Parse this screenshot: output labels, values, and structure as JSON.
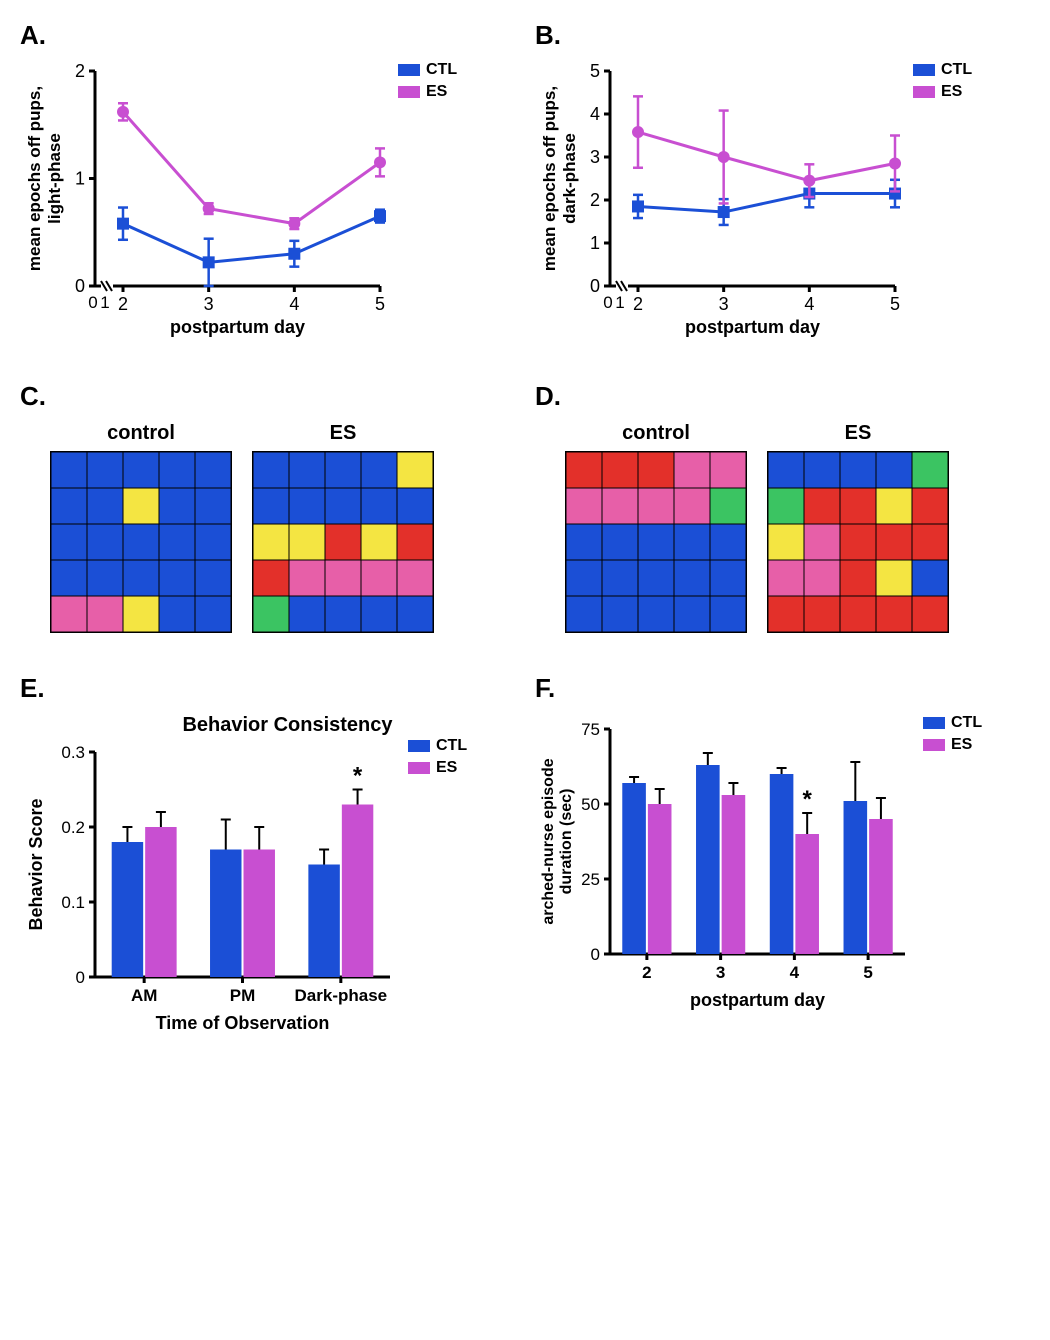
{
  "colors": {
    "ctl": "#1b4fd6",
    "es": "#c84fd1",
    "axis": "#000000",
    "text": "#000000",
    "hm_blue": "#1b4fd6",
    "hm_red": "#e3302a",
    "hm_pink": "#e75fa8",
    "hm_yellow": "#f4e542",
    "hm_green": "#3bc462",
    "bg": "#ffffff"
  },
  "panelA": {
    "label": "A.",
    "ylabel_line1": "mean epochs off pups,",
    "ylabel_line2": "light-phase",
    "xlabel": "postpartum day",
    "x_categories": [
      "2",
      "3",
      "4",
      "5"
    ],
    "yticks": [
      0,
      1,
      2
    ],
    "ylim": [
      0,
      2
    ],
    "series": [
      {
        "name": "CTL",
        "color": "#1b4fd6",
        "marker": "square",
        "values": [
          0.58,
          0.22,
          0.3,
          0.65
        ],
        "err": [
          0.15,
          0.22,
          0.12,
          0.06
        ]
      },
      {
        "name": "ES",
        "color": "#c84fd1",
        "marker": "circle",
        "values": [
          1.62,
          0.72,
          0.58,
          1.15
        ],
        "err": [
          0.08,
          0.05,
          0.05,
          0.13
        ]
      }
    ],
    "legend": [
      "CTL",
      "ES"
    ]
  },
  "panelB": {
    "label": "B.",
    "ylabel_line1": "mean epochs off pups,",
    "ylabel_line2": "dark-phase",
    "xlabel": "postpartum day",
    "x_categories": [
      "2",
      "3",
      "4",
      "5"
    ],
    "yticks": [
      0,
      1,
      2,
      3,
      4,
      5
    ],
    "ylim": [
      0,
      5
    ],
    "series": [
      {
        "name": "CTL",
        "color": "#1b4fd6",
        "marker": "square",
        "values": [
          1.85,
          1.72,
          2.15,
          2.15
        ],
        "err": [
          0.27,
          0.3,
          0.32,
          0.32
        ]
      },
      {
        "name": "ES",
        "color": "#c84fd1",
        "marker": "circle",
        "values": [
          3.58,
          3.0,
          2.45,
          2.85
        ],
        "err": [
          0.83,
          1.08,
          0.38,
          0.65
        ]
      }
    ],
    "legend": [
      "CTL",
      "ES"
    ]
  },
  "panelC": {
    "label": "C.",
    "titles": [
      "control",
      "ES"
    ],
    "grids": [
      [
        [
          "b",
          "b",
          "b",
          "b",
          "b"
        ],
        [
          "b",
          "b",
          "y",
          "b",
          "b"
        ],
        [
          "b",
          "b",
          "b",
          "b",
          "b"
        ],
        [
          "b",
          "b",
          "b",
          "b",
          "b"
        ],
        [
          "p",
          "p",
          "y",
          "b",
          "b"
        ]
      ],
      [
        [
          "b",
          "b",
          "b",
          "b",
          "y"
        ],
        [
          "b",
          "b",
          "b",
          "b",
          "b"
        ],
        [
          "y",
          "y",
          "r",
          "y",
          "r"
        ],
        [
          "r",
          "p",
          "p",
          "p",
          "p"
        ],
        [
          "g",
          "b",
          "b",
          "b",
          "b"
        ]
      ]
    ]
  },
  "panelD": {
    "label": "D.",
    "titles": [
      "control",
      "ES"
    ],
    "grids": [
      [
        [
          "r",
          "r",
          "r",
          "p",
          "p"
        ],
        [
          "p",
          "p",
          "p",
          "p",
          "g"
        ],
        [
          "b",
          "b",
          "b",
          "b",
          "b"
        ],
        [
          "b",
          "b",
          "b",
          "b",
          "b"
        ],
        [
          "b",
          "b",
          "b",
          "b",
          "b"
        ]
      ],
      [
        [
          "b",
          "b",
          "b",
          "b",
          "g"
        ],
        [
          "g",
          "r",
          "r",
          "y",
          "r"
        ],
        [
          "y",
          "p",
          "r",
          "r",
          "r"
        ],
        [
          "p",
          "p",
          "r",
          "y",
          "b"
        ],
        [
          "r",
          "r",
          "r",
          "r",
          "r"
        ]
      ]
    ]
  },
  "panelE": {
    "label": "E.",
    "title": "Behavior Consistency",
    "ylabel": "Behavior Score",
    "xlabel": "Time of Observation",
    "x_categories": [
      "AM",
      "PM",
      "Dark-phase"
    ],
    "yticks": [
      0.0,
      0.1,
      0.2,
      0.3
    ],
    "ylim": [
      0,
      0.3
    ],
    "series": [
      {
        "name": "CTL",
        "color": "#1b4fd6",
        "values": [
          0.18,
          0.17,
          0.15
        ],
        "err": [
          0.02,
          0.04,
          0.02
        ]
      },
      {
        "name": "ES",
        "color": "#c84fd1",
        "values": [
          0.2,
          0.17,
          0.23
        ],
        "err": [
          0.02,
          0.03,
          0.02
        ]
      }
    ],
    "annotations": [
      {
        "group_index": 2,
        "series_index": 1,
        "text": "*"
      }
    ],
    "legend": [
      "CTL",
      "ES"
    ]
  },
  "panelF": {
    "label": "F.",
    "ylabel_line1": "arched-nurse episode",
    "ylabel_line2": "duration (sec)",
    "xlabel": "postpartum day",
    "x_categories": [
      "2",
      "3",
      "4",
      "5"
    ],
    "yticks": [
      0,
      25,
      50,
      75
    ],
    "ylim": [
      0,
      75
    ],
    "series": [
      {
        "name": "CTL",
        "color": "#1b4fd6",
        "values": [
          57,
          63,
          60,
          51
        ],
        "err": [
          2,
          4,
          2,
          13
        ]
      },
      {
        "name": "ES",
        "color": "#c84fd1",
        "values": [
          50,
          53,
          40,
          45
        ],
        "err": [
          5,
          4,
          7,
          7
        ]
      }
    ],
    "annotations": [
      {
        "group_index": 2,
        "series_index": 1,
        "text": "*"
      }
    ],
    "legend": [
      "CTL",
      "ES"
    ]
  }
}
